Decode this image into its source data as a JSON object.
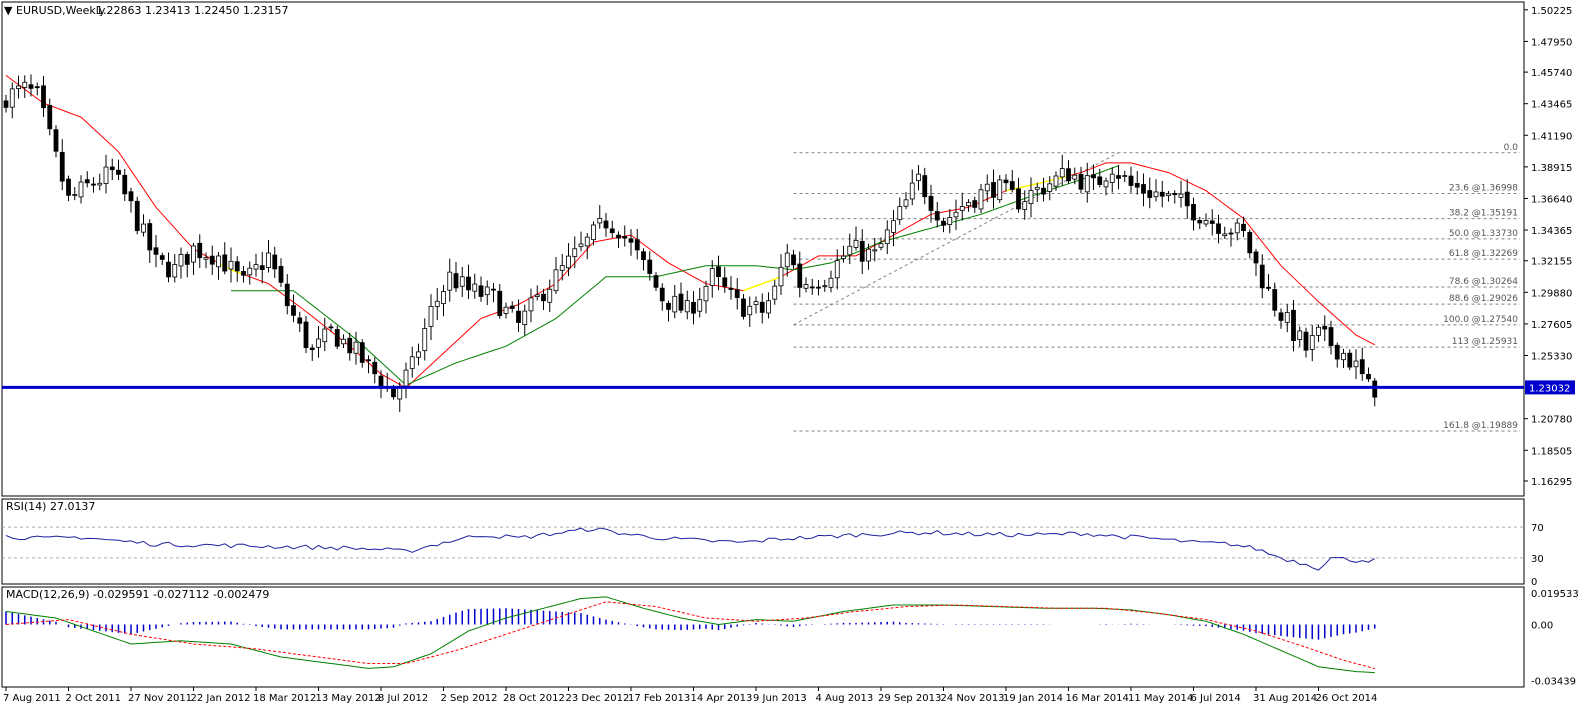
{
  "header": {
    "symbol": "EURUSD,Weekly",
    "ohlc": "1.22863 1.23413 1.22450 1.23157"
  },
  "colors": {
    "bull": "#ffffff",
    "bear": "#000000",
    "ma_fast": "#ff0000",
    "ma_slow": "#008000",
    "ma_flat": "#ffff00",
    "support_line": "#0000cd",
    "rsi_line": "#2020a0",
    "macd_hist": "#0000cd",
    "macd_line": "#008000",
    "macd_signal": "#ff0000",
    "fib_line": "#808080"
  },
  "current_price_label": "1.23032",
  "x_tick_labels": [
    "7 Aug 2011",
    "2 Oct 2011",
    "27 Nov 2011",
    "22 Jan 2012",
    "18 Mar 2012",
    "13 May 2012",
    "8 Jul 2012",
    "2 Sep 2012",
    "28 Oct 2012",
    "23 Dec 2012",
    "17 Feb 2013",
    "14 Apr 2013",
    "9 Jun 2013",
    "4 Aug 2013",
    "29 Sep 2013",
    "24 Nov 2013",
    "19 Jan 2014",
    "16 Mar 2014",
    "11 May 2014",
    "6 Jul 2014",
    "31 Aug 2014",
    "26 Oct 2014"
  ],
  "rsi": {
    "title": "RSI(14) 27.0137",
    "levels": [
      "70",
      "30",
      "0"
    ]
  },
  "macd": {
    "title": "MACD(12,26,9) -0.029591 -0.027112 -0.002479",
    "ticks": [
      "0.019533",
      "0.00",
      "-0.03439"
    ]
  },
  "chart_data": {
    "type": "candlestick",
    "timeframe": "Weekly",
    "price_axis": {
      "ticks": [
        "1.50225",
        "1.47950",
        "1.45740",
        "1.43465",
        "1.41190",
        "1.38915",
        "1.36640",
        "1.34365",
        "1.32155",
        "1.29880",
        "1.27605",
        "1.25330",
        "1.20780",
        "1.18505",
        "1.16295"
      ],
      "range": [
        1.155,
        1.505
      ]
    },
    "horizontal_level": 1.23032,
    "fibonacci": [
      {
        "label": "0.0",
        "value": 1.3993
      },
      {
        "label": "23.6 @1.36998",
        "value": 1.36998
      },
      {
        "label": "38.2 @1.35191",
        "value": 1.35191
      },
      {
        "label": "50.0 @1.33730",
        "value": 1.3373
      },
      {
        "label": "61.8 @1.32269",
        "value": 1.32269
      },
      {
        "label": "78.6 @1.30264",
        "value": 1.30264
      },
      {
        "label": "88.6 @1.29026",
        "value": 1.29026
      },
      {
        "label": "100.0 @1.27540",
        "value": 1.2754
      },
      {
        "label": "113 @1.25931",
        "value": 1.25931
      },
      {
        "label": "161.8 @1.19889",
        "value": 1.19889
      }
    ],
    "close_anchors": [
      [
        0,
        1.44
      ],
      [
        3,
        1.445
      ],
      [
        5,
        1.44
      ],
      [
        8,
        1.395
      ],
      [
        10,
        1.365
      ],
      [
        13,
        1.375
      ],
      [
        17,
        1.385
      ],
      [
        20,
        1.36
      ],
      [
        24,
        1.32
      ],
      [
        27,
        1.315
      ],
      [
        30,
        1.33
      ],
      [
        34,
        1.325
      ],
      [
        38,
        1.305
      ],
      [
        42,
        1.325
      ],
      [
        45,
        1.29
      ],
      [
        49,
        1.255
      ],
      [
        52,
        1.27
      ],
      [
        55,
        1.26
      ],
      [
        58,
        1.245
      ],
      [
        60,
        1.235
      ],
      [
        62,
        1.225
      ],
      [
        65,
        1.245
      ],
      [
        68,
        1.285
      ],
      [
        71,
        1.31
      ],
      [
        74,
        1.3
      ],
      [
        78,
        1.295
      ],
      [
        82,
        1.275
      ],
      [
        86,
        1.3
      ],
      [
        90,
        1.32
      ],
      [
        93,
        1.335
      ],
      [
        96,
        1.35
      ],
      [
        98,
        1.345
      ],
      [
        101,
        1.325
      ],
      [
        105,
        1.295
      ],
      [
        109,
        1.285
      ],
      [
        113,
        1.31
      ],
      [
        117,
        1.29
      ],
      [
        121,
        1.285
      ],
      [
        123,
        1.3
      ],
      [
        125,
        1.33
      ],
      [
        127,
        1.305
      ],
      [
        131,
        1.31
      ],
      [
        135,
        1.33
      ],
      [
        139,
        1.325
      ],
      [
        143,
        1.355
      ],
      [
        146,
        1.38
      ],
      [
        150,
        1.35
      ],
      [
        154,
        1.365
      ],
      [
        158,
        1.375
      ],
      [
        162,
        1.365
      ],
      [
        166,
        1.375
      ],
      [
        170,
        1.385
      ],
      [
        174,
        1.375
      ],
      [
        177,
        1.39
      ],
      [
        180,
        1.375
      ],
      [
        184,
        1.37
      ],
      [
        187,
        1.365
      ],
      [
        190,
        1.358
      ],
      [
        193,
        1.35
      ],
      [
        196,
        1.345
      ],
      [
        198,
        1.34
      ],
      [
        200,
        1.318
      ],
      [
        203,
        1.29
      ],
      [
        206,
        1.27
      ],
      [
        208,
        1.258
      ],
      [
        210,
        1.268
      ],
      [
        212,
        1.262
      ],
      [
        214,
        1.255
      ],
      [
        216,
        1.245
      ],
      [
        218,
        1.23
      ]
    ],
    "ma_fast_anchors": [
      [
        0,
        1.455
      ],
      [
        6,
        1.435
      ],
      [
        12,
        1.425
      ],
      [
        18,
        1.4
      ],
      [
        24,
        1.36
      ],
      [
        30,
        1.33
      ],
      [
        36,
        1.315
      ],
      [
        42,
        1.305
      ],
      [
        48,
        1.285
      ],
      [
        55,
        1.26
      ],
      [
        60,
        1.24
      ],
      [
        64,
        1.23
      ],
      [
        70,
        1.255
      ],
      [
        76,
        1.28
      ],
      [
        82,
        1.29
      ],
      [
        88,
        1.305
      ],
      [
        94,
        1.335
      ],
      [
        100,
        1.34
      ],
      [
        106,
        1.32
      ],
      [
        112,
        1.305
      ],
      [
        118,
        1.3
      ],
      [
        124,
        1.31
      ],
      [
        130,
        1.325
      ],
      [
        136,
        1.325
      ],
      [
        142,
        1.34
      ],
      [
        148,
        1.355
      ],
      [
        154,
        1.36
      ],
      [
        160,
        1.372
      ],
      [
        166,
        1.378
      ],
      [
        172,
        1.385
      ],
      [
        176,
        1.392
      ],
      [
        180,
        1.392
      ],
      [
        186,
        1.385
      ],
      [
        192,
        1.372
      ],
      [
        198,
        1.352
      ],
      [
        204,
        1.318
      ],
      [
        210,
        1.292
      ],
      [
        216,
        1.268
      ],
      [
        219,
        1.261
      ]
    ],
    "ma_slow_anchors": [
      [
        36,
        1.3
      ],
      [
        46,
        1.3
      ],
      [
        56,
        1.265
      ],
      [
        64,
        1.232
      ],
      [
        72,
        1.248
      ],
      [
        80,
        1.26
      ],
      [
        88,
        1.28
      ],
      [
        96,
        1.31
      ],
      [
        104,
        1.31
      ],
      [
        112,
        1.318
      ],
      [
        120,
        1.318
      ],
      [
        126,
        1.315
      ],
      [
        132,
        1.32
      ],
      [
        140,
        1.335
      ],
      [
        148,
        1.345
      ],
      [
        156,
        1.355
      ],
      [
        164,
        1.368
      ],
      [
        172,
        1.38
      ],
      [
        178,
        1.39
      ]
    ],
    "rsi_anchors": [
      [
        0,
        58
      ],
      [
        6,
        55
      ],
      [
        12,
        57
      ],
      [
        18,
        52
      ],
      [
        24,
        48
      ],
      [
        30,
        47
      ],
      [
        36,
        46
      ],
      [
        42,
        45
      ],
      [
        48,
        44
      ],
      [
        54,
        43
      ],
      [
        60,
        41
      ],
      [
        64,
        38
      ],
      [
        70,
        50
      ],
      [
        76,
        60
      ],
      [
        82,
        56
      ],
      [
        88,
        62
      ],
      [
        94,
        68
      ],
      [
        100,
        60
      ],
      [
        106,
        55
      ],
      [
        112,
        52
      ],
      [
        118,
        50
      ],
      [
        124,
        55
      ],
      [
        130,
        57
      ],
      [
        136,
        60
      ],
      [
        142,
        62
      ],
      [
        148,
        63
      ],
      [
        154,
        61
      ],
      [
        160,
        60
      ],
      [
        166,
        60
      ],
      [
        172,
        62
      ],
      [
        178,
        58
      ],
      [
        184,
        55
      ],
      [
        190,
        50
      ],
      [
        196,
        48
      ],
      [
        200,
        42
      ],
      [
        204,
        30
      ],
      [
        208,
        22
      ],
      [
        210,
        17
      ],
      [
        212,
        30
      ],
      [
        216,
        27
      ],
      [
        219,
        27.0137
      ]
    ],
    "macd_anchors": [
      [
        0,
        0.008
      ],
      [
        8,
        0.004
      ],
      [
        14,
        -0.004
      ],
      [
        20,
        -0.012
      ],
      [
        28,
        -0.01
      ],
      [
        36,
        -0.012
      ],
      [
        44,
        -0.02
      ],
      [
        52,
        -0.024
      ],
      [
        58,
        -0.027
      ],
      [
        62,
        -0.026
      ],
      [
        68,
        -0.018
      ],
      [
        74,
        -0.004
      ],
      [
        80,
        0.004
      ],
      [
        86,
        0.01
      ],
      [
        92,
        0.016
      ],
      [
        96,
        0.017
      ],
      [
        102,
        0.01
      ],
      [
        108,
        0.004
      ],
      [
        114,
        0.0
      ],
      [
        120,
        0.003
      ],
      [
        126,
        0.002
      ],
      [
        134,
        0.008
      ],
      [
        142,
        0.012
      ],
      [
        150,
        0.012
      ],
      [
        158,
        0.011
      ],
      [
        166,
        0.01
      ],
      [
        174,
        0.01
      ],
      [
        180,
        0.009
      ],
      [
        186,
        0.006
      ],
      [
        192,
        0.002
      ],
      [
        198,
        -0.006
      ],
      [
        204,
        -0.016
      ],
      [
        210,
        -0.026
      ],
      [
        216,
        -0.029
      ],
      [
        219,
        -0.029591
      ]
    ],
    "signal_anchors": [
      [
        0,
        0.0
      ],
      [
        10,
        0.003
      ],
      [
        20,
        -0.006
      ],
      [
        30,
        -0.012
      ],
      [
        40,
        -0.015
      ],
      [
        50,
        -0.02
      ],
      [
        58,
        -0.024
      ],
      [
        64,
        -0.024
      ],
      [
        72,
        -0.016
      ],
      [
        80,
        -0.006
      ],
      [
        88,
        0.004
      ],
      [
        96,
        0.014
      ],
      [
        104,
        0.011
      ],
      [
        112,
        0.004
      ],
      [
        120,
        0.002
      ],
      [
        128,
        0.004
      ],
      [
        136,
        0.008
      ],
      [
        144,
        0.011
      ],
      [
        152,
        0.012
      ],
      [
        160,
        0.011
      ],
      [
        168,
        0.01
      ],
      [
        176,
        0.01
      ],
      [
        184,
        0.007
      ],
      [
        192,
        0.003
      ],
      [
        200,
        -0.004
      ],
      [
        208,
        -0.014
      ],
      [
        214,
        -0.022
      ],
      [
        219,
        -0.027112
      ]
    ]
  }
}
